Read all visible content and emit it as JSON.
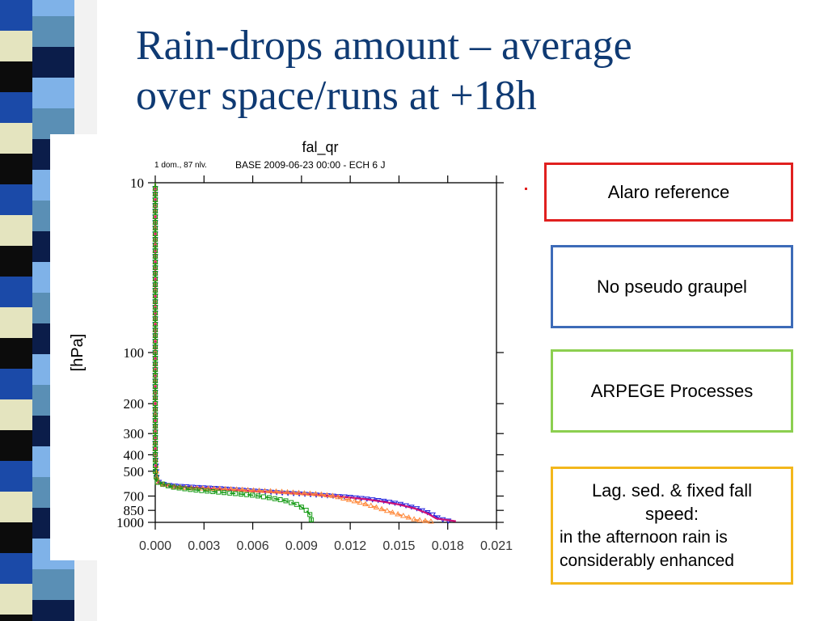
{
  "slide": {
    "title_line1": "Rain-drops amount – average",
    "title_line2": "over space/runs at +18h"
  },
  "legend_boxes": {
    "alaro": "Alaro reference",
    "no_pseudo": "No pseudo graupel",
    "arpege": "ARPEGE Processes",
    "lag_line1": "Lag. sed. & fixed fall",
    "lag_line2": "speed:",
    "lag_line3": "in the afternoon rain is",
    "lag_line4": "considerably enhanced"
  },
  "colors": {
    "title": "#0f3a73",
    "alaro": "#e0201f",
    "no_pseudo": "#3d6bb8",
    "arpege": "#8ccf50",
    "lag": "#f3b71c"
  },
  "chart_data": {
    "type": "line",
    "title": "fal_qr",
    "header_left": "1 dom., 87 nlv.",
    "header_right": "BASE 2009-06-23 00:00 - ECH 6 J",
    "xlabel": "",
    "ylabel": "[hPa]",
    "xlim": [
      0,
      0.021
    ],
    "ylim": [
      1000,
      10
    ],
    "yscale": "log-pressure",
    "grid": false,
    "x_ticks": [
      0,
      0.003,
      0.006,
      0.009,
      0.012,
      0.015,
      0.018,
      0.021
    ],
    "x_tick_labels": [
      "0.000",
      "0.003",
      "0.006",
      "0.009",
      "0.012",
      "0.015",
      "0.018",
      "0.021"
    ],
    "y_ticks": [
      10,
      100,
      200,
      300,
      400,
      500,
      700,
      850,
      1000
    ],
    "y_tick_labels": [
      "10",
      "100",
      "200",
      "300",
      "400",
      "500",
      "700",
      "850",
      "1000"
    ],
    "series": [
      {
        "color": "#2222dd",
        "marker": "triangle-down",
        "dash": "dash",
        "points": [
          [
            0,
            10
          ],
          [
            0,
            400
          ],
          [
            0.0001,
            560
          ],
          [
            0.0003,
            590
          ],
          [
            0.001,
            606
          ],
          [
            0.002,
            615
          ],
          [
            0.003,
            623
          ],
          [
            0.004,
            630
          ],
          [
            0.005,
            640
          ],
          [
            0.006,
            650
          ],
          [
            0.007,
            660
          ],
          [
            0.008,
            670
          ],
          [
            0.009,
            678
          ],
          [
            0.01,
            688
          ],
          [
            0.011,
            698
          ],
          [
            0.012,
            708
          ],
          [
            0.013,
            725
          ],
          [
            0.014,
            745
          ],
          [
            0.015,
            775
          ],
          [
            0.016,
            820
          ],
          [
            0.017,
            890
          ],
          [
            0.0175,
            950
          ],
          [
            0.0182,
            985
          ]
        ]
      },
      {
        "color": "#cc1177",
        "marker": "none",
        "dash": "solid",
        "points": [
          [
            0,
            10
          ],
          [
            0,
            400
          ],
          [
            0.0001,
            560
          ],
          [
            0.0003,
            595
          ],
          [
            0.001,
            612
          ],
          [
            0.002,
            622
          ],
          [
            0.003,
            630
          ],
          [
            0.004,
            637
          ],
          [
            0.005,
            645
          ],
          [
            0.006,
            654
          ],
          [
            0.007,
            662
          ],
          [
            0.008,
            670
          ],
          [
            0.009,
            678
          ],
          [
            0.01,
            688
          ],
          [
            0.011,
            700
          ],
          [
            0.012,
            714
          ],
          [
            0.013,
            732
          ],
          [
            0.014,
            755
          ],
          [
            0.015,
            785
          ],
          [
            0.016,
            830
          ],
          [
            0.0168,
            890
          ],
          [
            0.0173,
            950
          ],
          [
            0.0185,
            985
          ]
        ]
      },
      {
        "color": "#ff8a3c",
        "marker": "triangle-up",
        "dash": "dash",
        "points": [
          [
            0,
            10
          ],
          [
            0,
            400
          ],
          [
            0.0001,
            560
          ],
          [
            0.0003,
            595
          ],
          [
            0.001,
            615
          ],
          [
            0.002,
            628
          ],
          [
            0.003,
            632
          ],
          [
            0.004,
            635
          ],
          [
            0.005,
            640
          ],
          [
            0.006,
            648
          ],
          [
            0.007,
            655
          ],
          [
            0.008,
            663
          ],
          [
            0.009,
            673
          ],
          [
            0.01,
            682
          ],
          [
            0.011,
            700
          ],
          [
            0.0115,
            720
          ],
          [
            0.0125,
            760
          ],
          [
            0.0135,
            810
          ],
          [
            0.0145,
            870
          ],
          [
            0.0155,
            930
          ],
          [
            0.016,
            965
          ],
          [
            0.017,
            990
          ]
        ]
      },
      {
        "color": "#119911",
        "marker": "square",
        "dash": "dash",
        "points": [
          [
            0,
            10
          ],
          [
            0,
            500
          ],
          [
            0.0001,
            580
          ],
          [
            0.001,
            618
          ],
          [
            0.002,
            638
          ],
          [
            0.003,
            652
          ],
          [
            0.004,
            665
          ],
          [
            0.005,
            678
          ],
          [
            0.006,
            692
          ],
          [
            0.007,
            715
          ],
          [
            0.008,
            745
          ],
          [
            0.0088,
            790
          ],
          [
            0.0093,
            850
          ],
          [
            0.0096,
            920
          ],
          [
            0.0096,
            1000
          ]
        ]
      }
    ]
  }
}
